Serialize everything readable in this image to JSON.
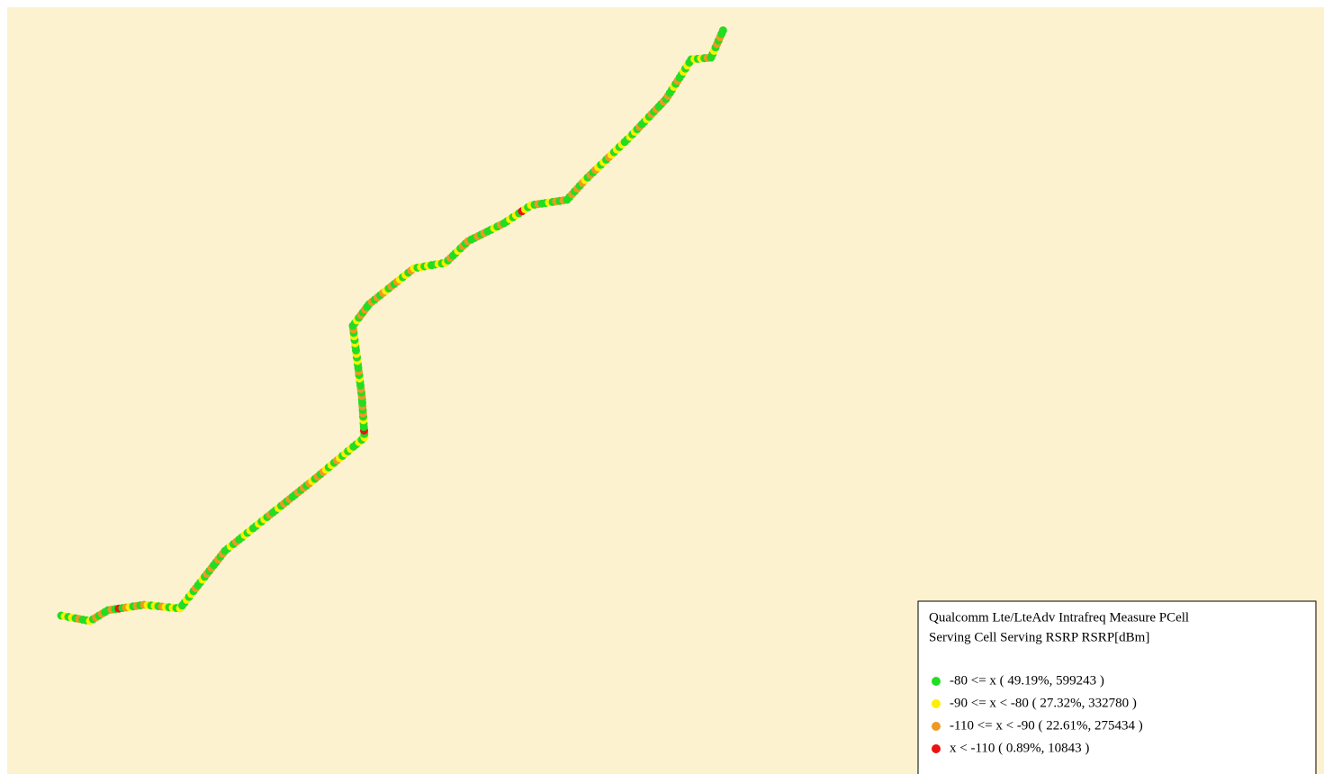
{
  "legend": {
    "title_lines": [
      "Qualcomm Lte/LteAdv Intrafreq Measure PCell",
      "Serving Cell Serving RSRP RSRP[dBm]"
    ],
    "entries": [
      {
        "label": "-80 <= x ( 49.19%, 599243 )",
        "color": "#22dd22"
      },
      {
        "label": "-90 <= x < -80 ( 27.32%, 332780 )",
        "color": "#ffee00"
      },
      {
        "label": "-110 <= x < -90 ( 22.61%, 275434 )",
        "color": "#ee9922"
      },
      {
        "label": "x < -110 ( 0.89%, 10843 )",
        "color": "#ee1111"
      }
    ]
  }
}
